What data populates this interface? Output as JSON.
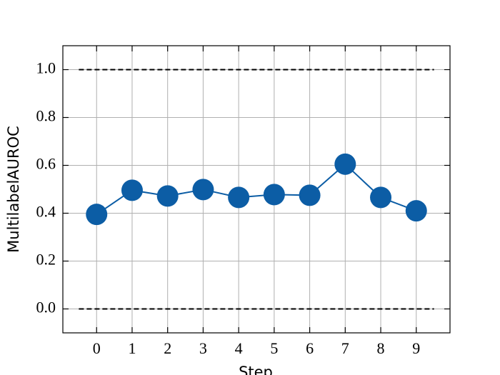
{
  "chart_data": {
    "type": "line",
    "x_label": "Step",
    "y_label": "MultilabelAUROC",
    "x": [
      0,
      1,
      2,
      3,
      4,
      5,
      6,
      7,
      8,
      9
    ],
    "series": [
      {
        "color": "#0C5DA5",
        "values": [
          0.395,
          0.496,
          0.472,
          0.499,
          0.466,
          0.478,
          0.475,
          0.605,
          0.466,
          0.41
        ]
      }
    ],
    "xlim": [
      -0.95,
      9.95
    ],
    "ylim": [
      -0.1,
      1.1
    ],
    "xticks": [
      0,
      1,
      2,
      3,
      4,
      5,
      6,
      7,
      8,
      9
    ],
    "yticks": [
      {
        "value": 0,
        "label": "0.0"
      },
      {
        "value": 0.2,
        "label": "0.2"
      },
      {
        "value": 0.4,
        "label": "0.4"
      },
      {
        "value": 0.6,
        "label": "0.6"
      },
      {
        "value": 0.8,
        "label": "0.8"
      },
      {
        "value": 1,
        "label": "1.0"
      }
    ],
    "reference_lines": {
      "values": [
        0,
        1
      ],
      "xmin": -0.5,
      "xmax": 9.5,
      "color": "#000000"
    },
    "grid": true
  }
}
